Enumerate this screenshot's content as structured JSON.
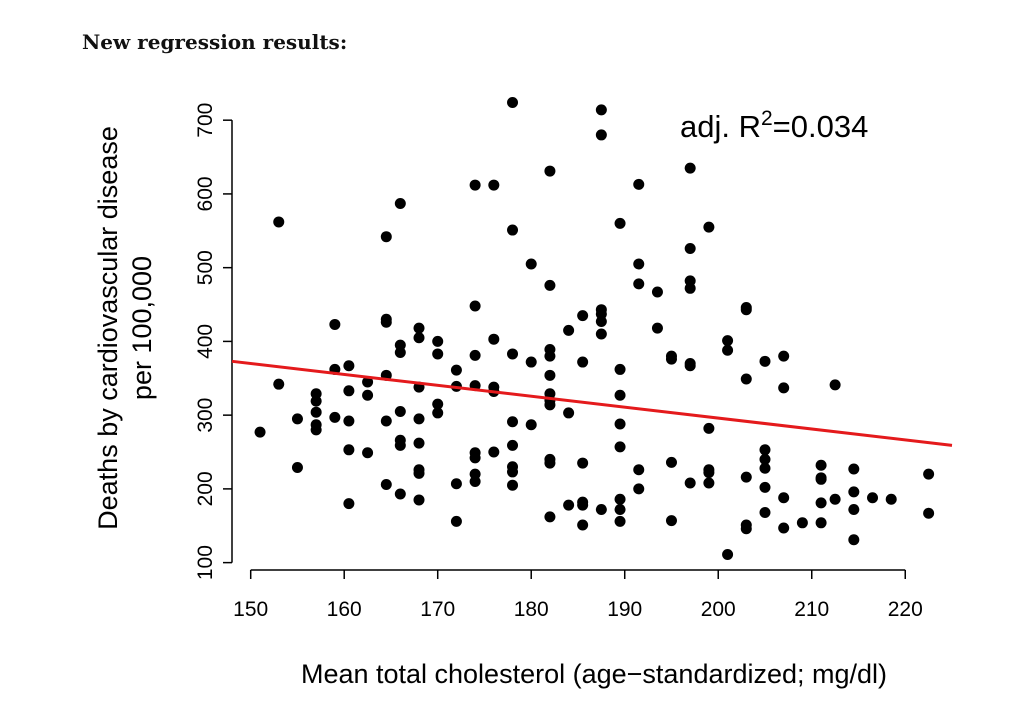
{
  "heading": "New regression results:",
  "chart_data": {
    "type": "scatter",
    "title": "",
    "xlabel": "Mean total cholesterol (age−standardized; mg/dl)",
    "ylabel_lines": [
      "Deaths by cardiovascular disease",
      "per 100,000"
    ],
    "xlim": [
      148,
      225
    ],
    "ylim": [
      90,
      745
    ],
    "xticks": [
      150,
      160,
      170,
      180,
      190,
      200,
      210,
      220
    ],
    "yticks": [
      100,
      200,
      300,
      400,
      500,
      600,
      700
    ],
    "grid": false,
    "point_color": "#000000",
    "line_color": "#e41a1c",
    "annotation": {
      "prefix": "adj. R",
      "superscript": "2",
      "suffix": "=0.034"
    },
    "regression_line": {
      "x": [
        148,
        225
      ],
      "y": [
        373,
        259
      ]
    },
    "points": [
      [
        151,
        277
      ],
      [
        153,
        562
      ],
      [
        153,
        342
      ],
      [
        155,
        295
      ],
      [
        155,
        229
      ],
      [
        157,
        329
      ],
      [
        157,
        319
      ],
      [
        157,
        304
      ],
      [
        157,
        287
      ],
      [
        157,
        280
      ],
      [
        159,
        423
      ],
      [
        159,
        362
      ],
      [
        159,
        297
      ],
      [
        160.5,
        367
      ],
      [
        160.5,
        333
      ],
      [
        160.5,
        292
      ],
      [
        160.5,
        253
      ],
      [
        160.5,
        180
      ],
      [
        162.5,
        345
      ],
      [
        162.5,
        327
      ],
      [
        162.5,
        249
      ],
      [
        164.5,
        542
      ],
      [
        164.5,
        430
      ],
      [
        164.5,
        426
      ],
      [
        164.5,
        354
      ],
      [
        164.5,
        292
      ],
      [
        164.5,
        206
      ],
      [
        166,
        587
      ],
      [
        166,
        395
      ],
      [
        166,
        385
      ],
      [
        166,
        305
      ],
      [
        166,
        266
      ],
      [
        166,
        259
      ],
      [
        166,
        193
      ],
      [
        168,
        418
      ],
      [
        168,
        405
      ],
      [
        168,
        338
      ],
      [
        168,
        295
      ],
      [
        168,
        262
      ],
      [
        168,
        226
      ],
      [
        168,
        221
      ],
      [
        168,
        185
      ],
      [
        170,
        400
      ],
      [
        170,
        383
      ],
      [
        170,
        315
      ],
      [
        170,
        303
      ],
      [
        172,
        361
      ],
      [
        172,
        339
      ],
      [
        172,
        207
      ],
      [
        172,
        156
      ],
      [
        174,
        612
      ],
      [
        174,
        448
      ],
      [
        174,
        381
      ],
      [
        174,
        340
      ],
      [
        174,
        249
      ],
      [
        174,
        242
      ],
      [
        174,
        220
      ],
      [
        174,
        210
      ],
      [
        176,
        612
      ],
      [
        176,
        403
      ],
      [
        176,
        338
      ],
      [
        176,
        332
      ],
      [
        176,
        250
      ],
      [
        178,
        724
      ],
      [
        178,
        551
      ],
      [
        178,
        383
      ],
      [
        178,
        291
      ],
      [
        178,
        259
      ],
      [
        178,
        230
      ],
      [
        178,
        223
      ],
      [
        178,
        205
      ],
      [
        180,
        505
      ],
      [
        180,
        372
      ],
      [
        180,
        287
      ],
      [
        182,
        631
      ],
      [
        182,
        476
      ],
      [
        182,
        389
      ],
      [
        182,
        380
      ],
      [
        182,
        354
      ],
      [
        182,
        329
      ],
      [
        182,
        320
      ],
      [
        182,
        314
      ],
      [
        182,
        240
      ],
      [
        182,
        235
      ],
      [
        182,
        162
      ],
      [
        184,
        415
      ],
      [
        184,
        303
      ],
      [
        184,
        178
      ],
      [
        185.5,
        435
      ],
      [
        185.5,
        372
      ],
      [
        185.5,
        235
      ],
      [
        185.5,
        182
      ],
      [
        185.5,
        178
      ],
      [
        185.5,
        151
      ],
      [
        187.5,
        714
      ],
      [
        187.5,
        680
      ],
      [
        187.5,
        443
      ],
      [
        187.5,
        437
      ],
      [
        187.5,
        427
      ],
      [
        187.5,
        410
      ],
      [
        187.5,
        172
      ],
      [
        189.5,
        560
      ],
      [
        189.5,
        362
      ],
      [
        189.5,
        327
      ],
      [
        189.5,
        288
      ],
      [
        189.5,
        257
      ],
      [
        189.5,
        186
      ],
      [
        189.5,
        172
      ],
      [
        189.5,
        156
      ],
      [
        191.5,
        613
      ],
      [
        191.5,
        505
      ],
      [
        191.5,
        478
      ],
      [
        191.5,
        226
      ],
      [
        191.5,
        200
      ],
      [
        193.5,
        467
      ],
      [
        193.5,
        418
      ],
      [
        195,
        380
      ],
      [
        195,
        376
      ],
      [
        195,
        236
      ],
      [
        195,
        157
      ],
      [
        197,
        635
      ],
      [
        197,
        526
      ],
      [
        197,
        482
      ],
      [
        197,
        472
      ],
      [
        197,
        370
      ],
      [
        197,
        367
      ],
      [
        197,
        208
      ],
      [
        199,
        555
      ],
      [
        199,
        282
      ],
      [
        199,
        226
      ],
      [
        199,
        222
      ],
      [
        199,
        208
      ],
      [
        201,
        401
      ],
      [
        201,
        388
      ],
      [
        201,
        111
      ],
      [
        203,
        446
      ],
      [
        203,
        443
      ],
      [
        203,
        349
      ],
      [
        203,
        216
      ],
      [
        203,
        151
      ],
      [
        203,
        146
      ],
      [
        205,
        373
      ],
      [
        205,
        253
      ],
      [
        205,
        240
      ],
      [
        205,
        228
      ],
      [
        205,
        202
      ],
      [
        205,
        168
      ],
      [
        207,
        380
      ],
      [
        207,
        337
      ],
      [
        207,
        188
      ],
      [
        207,
        147
      ],
      [
        209,
        154
      ],
      [
        211,
        232
      ],
      [
        211,
        215
      ],
      [
        211,
        213
      ],
      [
        211,
        181
      ],
      [
        211,
        154
      ],
      [
        212.5,
        341
      ],
      [
        212.5,
        186
      ],
      [
        214.5,
        227
      ],
      [
        214.5,
        196
      ],
      [
        214.5,
        172
      ],
      [
        214.5,
        131
      ],
      [
        216.5,
        188
      ],
      [
        218.5,
        186
      ],
      [
        222.5,
        220
      ],
      [
        222.5,
        167
      ]
    ]
  }
}
